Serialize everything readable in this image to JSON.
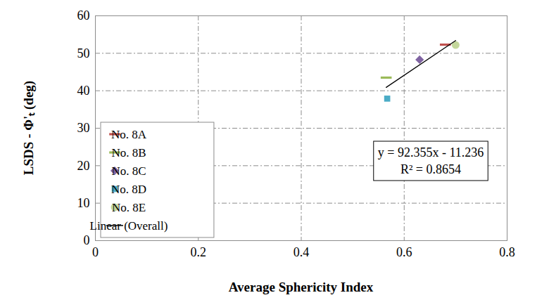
{
  "chart_data": {
    "type": "scatter",
    "x_label": "Average Sphericity Index",
    "y_label": "LSDS - Φ'ₜ (deg)",
    "xlim": [
      0,
      0.8
    ],
    "xticks": [
      0,
      0.2,
      0.4,
      0.6,
      0.8
    ],
    "ylim": [
      0,
      60
    ],
    "yticks": [
      0,
      10,
      20,
      30,
      40,
      50,
      60
    ],
    "grid": true,
    "legend": "lower left",
    "series": [
      {
        "name": "No. 8A",
        "type": "scatter",
        "color": "#c0504d",
        "marker": "dash",
        "x": [
          0.68
        ],
        "values": [
          52.3
        ]
      },
      {
        "name": "No. 8B",
        "type": "scatter",
        "color": "#9bbb59",
        "marker": "dash",
        "x": [
          0.565
        ],
        "values": [
          43.5
        ]
      },
      {
        "name": "No. 8C",
        "type": "scatter",
        "color": "#8064a2",
        "marker": "diamond",
        "x": [
          0.63
        ],
        "values": [
          48.3
        ]
      },
      {
        "name": "No. 8D",
        "type": "scatter",
        "color": "#4bacc6",
        "marker": "square",
        "x": [
          0.567
        ],
        "values": [
          37.9
        ]
      },
      {
        "name": "No. 8E",
        "type": "scatter",
        "color": "#c4d79b",
        "marker": "circle",
        "x": [
          0.7
        ],
        "values": [
          52.2
        ]
      },
      {
        "name": "Linear (Overall)",
        "type": "line",
        "color": "#000000",
        "line_style": "solid",
        "x": [
          0.565,
          0.7
        ],
        "values": [
          40.9,
          53.4
        ]
      }
    ],
    "annotations": [
      "y = 92.355x - 11.236",
      "R² = 0.8654"
    ]
  }
}
